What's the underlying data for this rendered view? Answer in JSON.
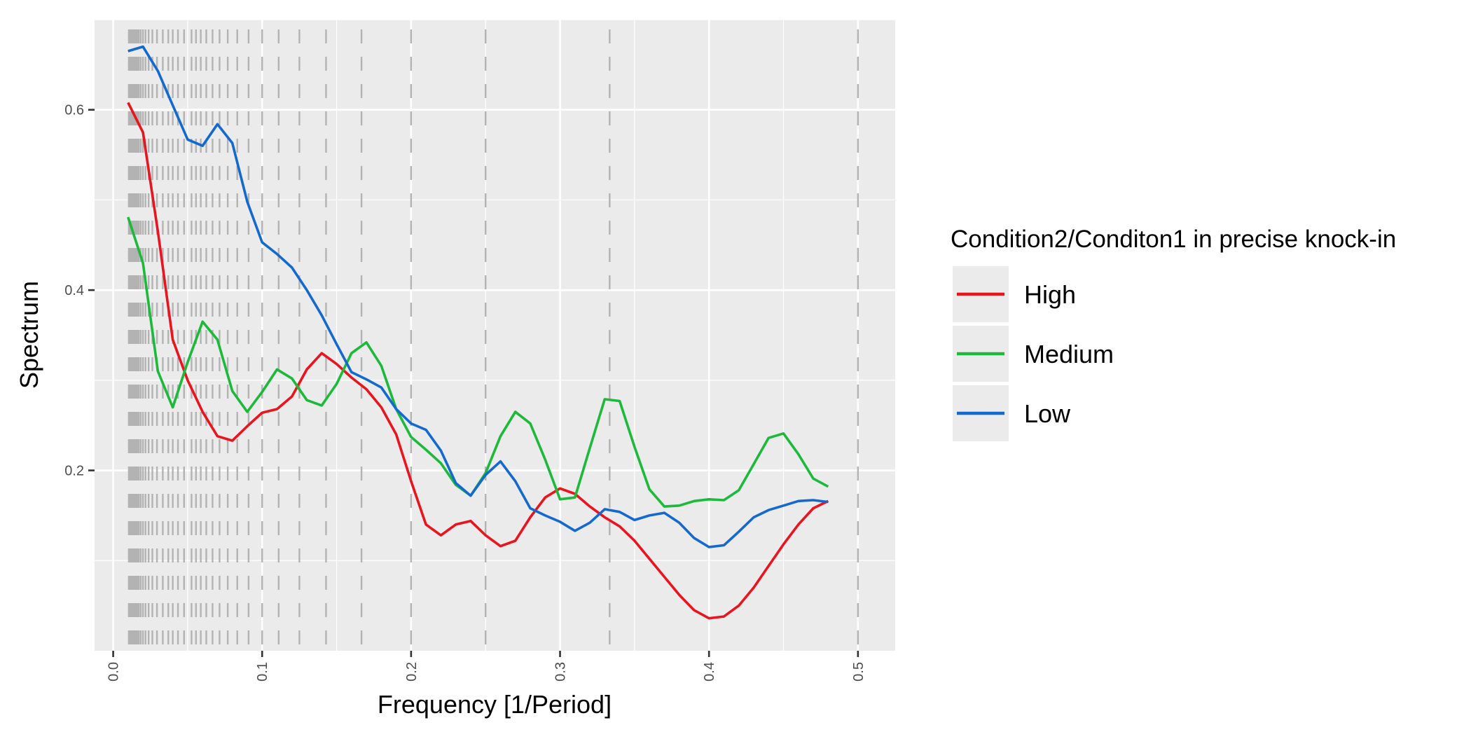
{
  "chart_data": {
    "type": "line",
    "title": "",
    "xlabel": "Frequency [1/Period]",
    "ylabel": "Spectrum",
    "xlim": [
      -0.0125,
      0.525
    ],
    "ylim": [
      0.0,
      0.7
    ],
    "x_ticks": [
      0.0,
      0.1,
      0.2,
      0.3,
      0.4,
      0.5
    ],
    "x_tick_labels": [
      "0.0",
      "0.1",
      "0.2",
      "0.3",
      "0.4",
      "0.5"
    ],
    "y_ticks": [
      0.2,
      0.4,
      0.6
    ],
    "y_tick_labels": [
      "0.2",
      "0.4",
      "0.6"
    ],
    "grid": true,
    "legend": {
      "title": "Condition2/Conditon1 in precise knock-in",
      "position": "right",
      "entries": [
        "High",
        "Medium",
        "Low"
      ]
    },
    "series": [
      {
        "name": "High",
        "color": "#e8141e",
        "points": [
          [
            0.01,
            0.608
          ],
          [
            0.02,
            0.575
          ],
          [
            0.03,
            0.465
          ],
          [
            0.04,
            0.345
          ],
          [
            0.05,
            0.3
          ],
          [
            0.06,
            0.265
          ],
          [
            0.07,
            0.238
          ],
          [
            0.08,
            0.233
          ],
          [
            0.09,
            0.249
          ],
          [
            0.1,
            0.264
          ],
          [
            0.11,
            0.268
          ],
          [
            0.12,
            0.282
          ],
          [
            0.13,
            0.312
          ],
          [
            0.14,
            0.33
          ],
          [
            0.15,
            0.318
          ],
          [
            0.16,
            0.303
          ],
          [
            0.17,
            0.29
          ],
          [
            0.18,
            0.27
          ],
          [
            0.19,
            0.24
          ],
          [
            0.2,
            0.188
          ],
          [
            0.21,
            0.14
          ],
          [
            0.22,
            0.128
          ],
          [
            0.23,
            0.14
          ],
          [
            0.24,
            0.144
          ],
          [
            0.25,
            0.128
          ],
          [
            0.26,
            0.116
          ],
          [
            0.27,
            0.122
          ],
          [
            0.28,
            0.148
          ],
          [
            0.29,
            0.17
          ],
          [
            0.3,
            0.18
          ],
          [
            0.31,
            0.174
          ],
          [
            0.32,
            0.16
          ],
          [
            0.33,
            0.148
          ],
          [
            0.34,
            0.138
          ],
          [
            0.35,
            0.122
          ],
          [
            0.36,
            0.102
          ],
          [
            0.37,
            0.082
          ],
          [
            0.38,
            0.062
          ],
          [
            0.39,
            0.045
          ],
          [
            0.4,
            0.036
          ],
          [
            0.41,
            0.038
          ],
          [
            0.42,
            0.05
          ],
          [
            0.43,
            0.07
          ],
          [
            0.44,
            0.094
          ],
          [
            0.45,
            0.118
          ],
          [
            0.46,
            0.14
          ],
          [
            0.47,
            0.158
          ],
          [
            0.48,
            0.166
          ]
        ]
      },
      {
        "name": "Medium",
        "color": "#1cb93a",
        "points": [
          [
            0.01,
            0.481
          ],
          [
            0.02,
            0.43
          ],
          [
            0.03,
            0.31
          ],
          [
            0.04,
            0.27
          ],
          [
            0.05,
            0.32
          ],
          [
            0.06,
            0.365
          ],
          [
            0.07,
            0.345
          ],
          [
            0.08,
            0.288
          ],
          [
            0.09,
            0.265
          ],
          [
            0.1,
            0.287
          ],
          [
            0.11,
            0.312
          ],
          [
            0.12,
            0.302
          ],
          [
            0.13,
            0.278
          ],
          [
            0.14,
            0.272
          ],
          [
            0.15,
            0.296
          ],
          [
            0.16,
            0.33
          ],
          [
            0.17,
            0.342
          ],
          [
            0.18,
            0.316
          ],
          [
            0.19,
            0.268
          ],
          [
            0.2,
            0.237
          ],
          [
            0.21,
            0.223
          ],
          [
            0.22,
            0.208
          ],
          [
            0.23,
            0.184
          ],
          [
            0.24,
            0.172
          ],
          [
            0.25,
            0.197
          ],
          [
            0.26,
            0.238
          ],
          [
            0.27,
            0.265
          ],
          [
            0.28,
            0.252
          ],
          [
            0.29,
            0.212
          ],
          [
            0.3,
            0.168
          ],
          [
            0.31,
            0.17
          ],
          [
            0.32,
            0.225
          ],
          [
            0.33,
            0.279
          ],
          [
            0.34,
            0.277
          ],
          [
            0.35,
            0.226
          ],
          [
            0.36,
            0.179
          ],
          [
            0.37,
            0.16
          ],
          [
            0.38,
            0.161
          ],
          [
            0.39,
            0.166
          ],
          [
            0.4,
            0.168
          ],
          [
            0.41,
            0.167
          ],
          [
            0.42,
            0.178
          ],
          [
            0.43,
            0.207
          ],
          [
            0.44,
            0.236
          ],
          [
            0.45,
            0.241
          ],
          [
            0.46,
            0.218
          ],
          [
            0.47,
            0.191
          ],
          [
            0.48,
            0.182
          ]
        ]
      },
      {
        "name": "Low",
        "color": "#1469cf",
        "points": [
          [
            0.01,
            0.665
          ],
          [
            0.02,
            0.67
          ],
          [
            0.03,
            0.643
          ],
          [
            0.04,
            0.605
          ],
          [
            0.05,
            0.567
          ],
          [
            0.06,
            0.56
          ],
          [
            0.07,
            0.584
          ],
          [
            0.08,
            0.563
          ],
          [
            0.09,
            0.498
          ],
          [
            0.1,
            0.453
          ],
          [
            0.11,
            0.44
          ],
          [
            0.12,
            0.425
          ],
          [
            0.13,
            0.4
          ],
          [
            0.14,
            0.372
          ],
          [
            0.15,
            0.34
          ],
          [
            0.16,
            0.309
          ],
          [
            0.17,
            0.301
          ],
          [
            0.18,
            0.292
          ],
          [
            0.19,
            0.268
          ],
          [
            0.2,
            0.252
          ],
          [
            0.21,
            0.245
          ],
          [
            0.22,
            0.222
          ],
          [
            0.23,
            0.186
          ],
          [
            0.24,
            0.172
          ],
          [
            0.25,
            0.195
          ],
          [
            0.26,
            0.21
          ],
          [
            0.27,
            0.188
          ],
          [
            0.28,
            0.158
          ],
          [
            0.29,
            0.15
          ],
          [
            0.3,
            0.143
          ],
          [
            0.31,
            0.133
          ],
          [
            0.32,
            0.142
          ],
          [
            0.33,
            0.157
          ],
          [
            0.34,
            0.154
          ],
          [
            0.35,
            0.145
          ],
          [
            0.36,
            0.15
          ],
          [
            0.37,
            0.153
          ],
          [
            0.38,
            0.142
          ],
          [
            0.39,
            0.125
          ],
          [
            0.4,
            0.115
          ],
          [
            0.41,
            0.117
          ],
          [
            0.42,
            0.132
          ],
          [
            0.43,
            0.148
          ],
          [
            0.44,
            0.156
          ],
          [
            0.45,
            0.161
          ],
          [
            0.46,
            0.166
          ],
          [
            0.47,
            0.167
          ],
          [
            0.48,
            0.165
          ]
        ]
      }
    ],
    "reference_lines": {
      "color": "#b3b3b3",
      "style": "dashed",
      "x": [
        0.0105,
        0.011,
        0.0116,
        0.0122,
        0.0128,
        0.0135,
        0.0143,
        0.0152,
        0.0161,
        0.0172,
        0.0185,
        0.02,
        0.0217,
        0.0238,
        0.0263,
        0.0294,
        0.0333,
        0.037,
        0.04,
        0.0435,
        0.0476,
        0.0526,
        0.0556,
        0.0588,
        0.0625,
        0.0667,
        0.0714,
        0.0769,
        0.0833,
        0.0909,
        0.1,
        0.1111,
        0.125,
        0.1429,
        0.1667,
        0.2,
        0.25,
        0.3333,
        0.5
      ]
    }
  }
}
